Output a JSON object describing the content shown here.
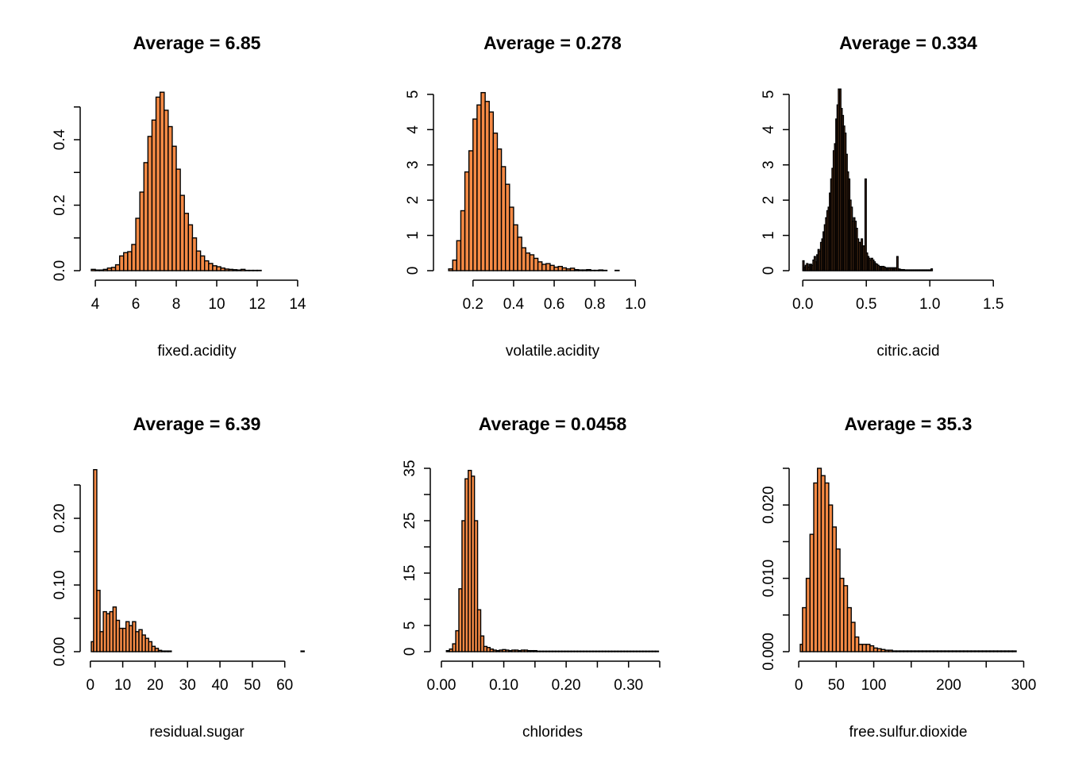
{
  "chart_data": [
    {
      "type": "bar",
      "title": "Average = 6.85",
      "xlabel": "fixed.acidity",
      "ylabel": "",
      "xlim": [
        3.8,
        14.2
      ],
      "ylim": [
        0,
        0.56
      ],
      "xticks": [
        4,
        6,
        8,
        10,
        12,
        14
      ],
      "xtick_labels": [
        "4",
        "6",
        "8",
        "10",
        "12",
        "14"
      ],
      "yticks": [
        0,
        0.1,
        0.2,
        0.3,
        0.4,
        0.5
      ],
      "ytick_labels": [
        "0.0",
        "",
        "0.2",
        "",
        "0.4",
        ""
      ],
      "bin_start": 3.8,
      "bin_width": 0.2,
      "values": [
        0.004,
        0.002,
        0.002,
        0.004,
        0.008,
        0.01,
        0.018,
        0.045,
        0.055,
        0.058,
        0.08,
        0.16,
        0.24,
        0.33,
        0.41,
        0.46,
        0.53,
        0.545,
        0.49,
        0.44,
        0.38,
        0.31,
        0.23,
        0.175,
        0.14,
        0.1,
        0.06,
        0.045,
        0.03,
        0.022,
        0.015,
        0.012,
        0.008,
        0.005,
        0.004,
        0.003,
        0.002,
        0.004,
        0.001,
        0.001,
        0.001,
        0.001,
        0.0,
        0.0,
        0.0,
        0.0,
        0.0,
        0.0,
        0.0,
        0.0,
        0.0,
        0.0
      ]
    },
    {
      "type": "bar",
      "title": "Average = 0.278",
      "xlabel": "volatile.acidity",
      "ylabel": "",
      "xlim": [
        0.06,
        1.12
      ],
      "ylim": [
        0,
        5.2
      ],
      "xticks": [
        0.2,
        0.4,
        0.6,
        0.8,
        1.0
      ],
      "xtick_labels": [
        "0.2",
        "0.4",
        "0.6",
        "0.8",
        "1.0"
      ],
      "yticks": [
        0,
        1,
        2,
        3,
        4,
        5
      ],
      "ytick_labels": [
        "0",
        "1",
        "2",
        "3",
        "4",
        "5"
      ],
      "bin_start": 0.08,
      "bin_width": 0.02,
      "values": [
        0.05,
        0.3,
        0.85,
        1.7,
        2.8,
        3.4,
        4.3,
        4.7,
        5.05,
        4.8,
        4.5,
        3.9,
        3.45,
        2.95,
        2.45,
        1.8,
        1.3,
        0.95,
        0.65,
        0.5,
        0.45,
        0.35,
        0.25,
        0.18,
        0.2,
        0.15,
        0.1,
        0.12,
        0.08,
        0.05,
        0.07,
        0.03,
        0.02,
        0.02,
        0.03,
        0.01,
        0.01,
        0.02,
        0.01,
        0.0,
        0.0,
        0.01,
        0.0,
        0.0,
        0.0,
        0.0,
        0.0,
        0.0,
        0.0,
        0.0,
        0.0,
        0.0
      ]
    },
    {
      "type": "bar",
      "title": "Average = 0.334",
      "xlabel": "citric.acid",
      "ylabel": "",
      "xlim": [
        -0.02,
        1.68
      ],
      "ylim": [
        0,
        5.2
      ],
      "xticks": [
        0.0,
        0.5,
        1.0,
        1.5
      ],
      "xtick_labels": [
        "0.0",
        "0.5",
        "1.0",
        "1.5"
      ],
      "yticks": [
        0,
        1,
        2,
        3,
        4,
        5
      ],
      "ytick_labels": [
        "0",
        "1",
        "2",
        "3",
        "4",
        "5"
      ],
      "bin_start": 0.0,
      "bin_width": 0.01,
      "values": [
        0.28,
        0.1,
        0.15,
        0.2,
        0.1,
        0.18,
        0.18,
        0.15,
        0.3,
        0.4,
        0.25,
        0.45,
        0.6,
        0.55,
        0.8,
        0.9,
        1.1,
        1.3,
        1.5,
        1.7,
        1.8,
        2.2,
        2.6,
        2.9,
        3.4,
        3.6,
        4.3,
        4.7,
        5.15,
        5.15,
        4.6,
        4.4,
        4.1,
        3.9,
        3.3,
        2.8,
        2.6,
        2.0,
        1.8,
        1.4,
        1.5,
        1.4,
        1.2,
        0.9,
        0.8,
        0.8,
        0.9,
        0.7,
        0.7,
        2.6,
        0.5,
        0.4,
        0.35,
        0.3,
        0.35,
        0.3,
        0.25,
        0.2,
        0.18,
        0.15,
        0.12,
        0.12,
        0.12,
        0.12,
        0.1,
        0.08,
        0.08,
        0.08,
        0.08,
        0.08,
        0.08,
        0.08,
        0.08,
        0.08,
        0.4,
        0.05,
        0.04,
        0.03,
        0.03,
        0.03,
        0.02,
        0.02,
        0.02,
        0.02,
        0.02,
        0.02,
        0.02,
        0.02,
        0.02,
        0.02,
        0.02,
        0.02,
        0.02,
        0.02,
        0.02,
        0.02,
        0.02,
        0.02,
        0.02,
        0.02,
        0.02,
        0.05
      ]
    },
    {
      "type": "bar",
      "title": "Average = 6.39",
      "xlabel": "residual.sugar",
      "ylabel": "",
      "xlim": [
        0.3,
        66.2
      ],
      "ylim": [
        0,
        0.275
      ],
      "xticks": [
        0,
        10,
        20,
        30,
        40,
        50,
        60
      ],
      "xtick_labels": [
        "0",
        "10",
        "20",
        "30",
        "40",
        "50",
        "60"
      ],
      "yticks": [
        0,
        0.05,
        0.1,
        0.15,
        0.2,
        0.25
      ],
      "ytick_labels": [
        "0.00",
        "",
        "0.10",
        "",
        "0.20",
        ""
      ],
      "bin_start": 0,
      "bin_width": 1,
      "values": [
        0.015,
        0.273,
        0.092,
        0.03,
        0.06,
        0.057,
        0.06,
        0.067,
        0.047,
        0.035,
        0.035,
        0.045,
        0.039,
        0.045,
        0.03,
        0.033,
        0.025,
        0.02,
        0.015,
        0.008,
        0.005,
        0.002,
        0.001,
        0.001,
        0.001,
        0.0,
        0.0,
        0.0,
        0.0,
        0.0,
        0.0,
        0.0,
        0.0,
        0.0,
        0.0,
        0.0,
        0.0,
        0.0,
        0.0,
        0.0,
        0.0,
        0.0,
        0.0,
        0.0,
        0.0,
        0.0,
        0.0,
        0.0,
        0.0,
        0.0,
        0.0,
        0.0,
        0.0,
        0.0,
        0.0,
        0.0,
        0.0,
        0.0,
        0.0,
        0.0,
        0.0,
        0.0,
        0.0,
        0.0,
        0.0,
        0.001
      ]
    },
    {
      "type": "bar",
      "title": "Average = 0.0458",
      "xlabel": "chlorides",
      "ylabel": "",
      "xlim": [
        0.0,
        0.35
      ],
      "ylim": [
        0,
        35
      ],
      "xticks": [
        0.0,
        0.05,
        0.1,
        0.15,
        0.2,
        0.25,
        0.3,
        0.35
      ],
      "xtick_labels": [
        "0.00",
        "",
        "0.10",
        "",
        "0.20",
        "",
        "0.30",
        ""
      ],
      "yticks": [
        0,
        5,
        10,
        15,
        20,
        25,
        30,
        35
      ],
      "ytick_labels": [
        "0",
        "5",
        "",
        "15",
        "",
        "25",
        "",
        "35"
      ],
      "bin_start": 0.008,
      "bin_width": 0.005,
      "values": [
        0.2,
        0.5,
        1.5,
        4.0,
        12.0,
        25.0,
        33.0,
        34.6,
        33.5,
        25.0,
        8.0,
        3.0,
        1.0,
        0.8,
        0.5,
        0.3,
        0.2,
        0.3,
        0.4,
        0.3,
        0.2,
        0.3,
        0.3,
        0.2,
        0.3,
        0.3,
        0.2,
        0.2,
        0.2,
        0.1,
        0.1,
        0.1,
        0.1,
        0.1,
        0.1,
        0.1,
        0.1,
        0.1,
        0.1,
        0.1,
        0.1,
        0.1,
        0.1,
        0.1,
        0.1,
        0.1,
        0.1,
        0.1,
        0.1,
        0.1,
        0.1,
        0.1,
        0.1,
        0.1,
        0.1,
        0.1,
        0.1,
        0.1,
        0.1,
        0.1,
        0.1,
        0.1,
        0.1,
        0.1,
        0.1,
        0.1,
        0.1,
        0.1
      ]
    },
    {
      "type": "bar",
      "title": "Average = 35.3",
      "xlabel": "free.sulfur.dioxide",
      "ylabel": "",
      "xlim": [
        2,
        290
      ],
      "ylim": [
        0,
        0.025
      ],
      "xticks": [
        0,
        50,
        100,
        150,
        200,
        250,
        300
      ],
      "xtick_labels": [
        "0",
        "50",
        "100",
        "",
        "200",
        "",
        "300"
      ],
      "yticks": [
        0,
        0.005,
        0.01,
        0.015,
        0.02,
        0.025
      ],
      "ytick_labels": [
        "0.000",
        "",
        "0.010",
        "",
        "0.020",
        ""
      ],
      "bin_start": 0,
      "bin_width": 5,
      "values": [
        0.001,
        0.006,
        0.01,
        0.016,
        0.023,
        0.025,
        0.024,
        0.023,
        0.02,
        0.017,
        0.014,
        0.01,
        0.009,
        0.006,
        0.004,
        0.002,
        0.001,
        0.001,
        0.001,
        0.0008,
        0.0005,
        0.0004,
        0.0003,
        0.0002,
        0.0002,
        0.0001,
        0.0001,
        0.0001,
        0.0001,
        0.0001,
        0.0001,
        0.0001,
        0.0001,
        0.0001,
        0.0001,
        0.0001,
        0.0001,
        0.0001,
        0.0001,
        0.0001,
        0.0001,
        0.0001,
        0.0001,
        0.0001,
        0.0001,
        0.0001,
        0.0001,
        0.0001,
        0.0001,
        0.0001,
        0.0001,
        0.0001,
        0.0001,
        0.0001,
        0.0001,
        0.0001,
        0.0001,
        0.0001
      ]
    }
  ],
  "colors": {
    "bar_fill": "#f58a45",
    "bar_stroke": "#000000",
    "background": "#ffffff"
  }
}
